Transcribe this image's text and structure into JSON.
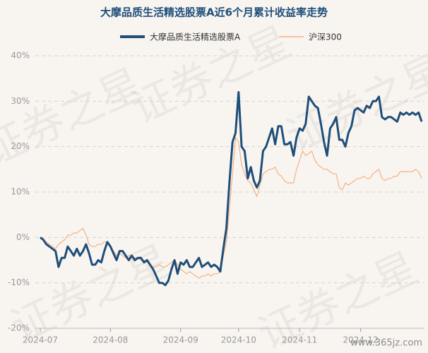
{
  "chart_data": {
    "type": "line",
    "title": "大摩品质生活精选股票A近6个月累计收益率走势",
    "watermark": "证券之星",
    "site_watermark": "www.365jz.com",
    "categories": [
      "2024-07",
      null,
      null,
      null,
      null,
      null,
      null,
      null,
      null,
      null,
      null,
      null,
      null,
      null,
      null,
      null,
      null,
      null,
      null,
      null,
      null,
      null,
      null,
      "2024-08",
      null,
      null,
      null,
      null,
      null,
      null,
      null,
      null,
      null,
      null,
      null,
      null,
      null,
      null,
      null,
      null,
      null,
      null,
      null,
      null,
      null,
      null,
      "2024-09",
      null,
      null,
      null,
      null,
      null,
      null,
      null,
      null,
      null,
      null,
      null,
      null,
      null,
      null,
      null,
      null,
      null,
      null,
      "2024-10",
      null,
      null,
      null,
      null,
      null,
      null,
      null,
      null,
      null,
      null,
      null,
      null,
      null,
      null,
      null,
      null,
      null,
      null,
      null,
      "2024-11",
      null,
      null,
      null,
      null,
      null,
      null,
      null,
      null,
      null,
      null,
      null,
      null,
      null,
      null,
      null,
      null,
      null,
      null,
      null,
      "2024-12",
      null,
      null,
      null,
      null,
      null,
      null,
      null,
      null,
      null,
      null,
      null,
      null,
      null,
      null,
      null,
      null,
      null,
      null,
      null,
      null
    ],
    "series": [
      {
        "name": "大摩品质生活精选股票A",
        "color": "#1f4e79",
        "values": [
          0,
          -0.5,
          -1.5,
          -2,
          -2.5,
          -3,
          -6.5,
          -4.5,
          -4.5,
          -2,
          -3,
          -4,
          -2.5,
          -4,
          -3,
          -1.5,
          -3.5,
          -6,
          -6,
          -5,
          -5.5,
          -3,
          -1,
          -2,
          -3.5,
          -5,
          -3,
          -3,
          -4,
          -5,
          -4,
          -5,
          -4.5,
          -4.5,
          -5.5,
          -5,
          -6,
          -7,
          -8.5,
          -10,
          -10,
          -10.5,
          -9.5,
          -7,
          -5,
          -8,
          -5.5,
          -6,
          -5,
          -6.5,
          -6.5,
          -5.5,
          -4.5,
          -6.5,
          -6,
          -5.5,
          -6.5,
          -6,
          -6.5,
          -7.5,
          -2.5,
          2,
          12,
          21,
          23,
          32,
          20,
          19,
          13,
          15.5,
          12.5,
          11,
          12.5,
          19,
          20,
          22,
          24,
          20.5,
          24.5,
          24.5,
          20.5,
          20.5,
          21,
          18,
          22,
          24,
          23.5,
          25,
          31,
          30,
          29,
          28.5,
          25,
          21,
          18,
          24,
          25,
          26.5,
          21.5,
          21.5,
          20,
          23,
          24.5,
          28,
          28.5,
          28,
          27.5,
          29,
          28.5,
          30,
          30,
          31,
          26.5,
          26,
          26.5,
          26.5,
          26,
          25.5,
          27.5,
          27,
          27.5,
          27,
          27.5,
          27,
          27.5,
          25.5
        ]
      },
      {
        "name": "沪深300",
        "color": "#f4b183",
        "values": [
          0,
          -0.5,
          -1,
          -1.5,
          -2,
          -2.5,
          -1.5,
          -1,
          -0.5,
          0.5,
          0.5,
          1,
          1,
          1.5,
          2,
          0.5,
          -1.5,
          -2,
          -2,
          -1.5,
          -1.5,
          -1,
          -1,
          -2,
          -3,
          -4,
          -3.5,
          -4,
          -4.5,
          -4,
          -4,
          -4.5,
          -4.5,
          -5,
          -5,
          -5.5,
          -6,
          -6.5,
          -6.5,
          -6,
          -6.5,
          -6.5,
          -6,
          -5.5,
          -5,
          -6,
          -7,
          -7.5,
          -8,
          -7.5,
          -8,
          -8.5,
          -9,
          -8.5,
          -8.5,
          -8,
          -8.5,
          -8,
          -8,
          -7.5,
          -4,
          -1,
          6,
          14,
          22,
          21,
          16,
          14,
          12.5,
          12,
          10.5,
          9,
          11.5,
          14,
          14.5,
          15,
          15,
          15.5,
          14,
          13.5,
          12.5,
          12,
          12,
          12,
          15,
          17,
          19,
          18,
          18.5,
          19,
          17,
          16,
          15.5,
          15,
          15,
          14.5,
          14,
          14,
          11,
          10.5,
          12,
          11.5,
          12,
          12.5,
          13,
          13,
          13.5,
          13,
          13,
          14,
          14.5,
          15,
          13,
          12.5,
          13,
          13,
          13.5,
          13.5,
          14.5,
          14.5,
          14.5,
          14.5,
          14.5,
          15,
          14.5,
          13
        ]
      }
    ],
    "ylim": [
      -20,
      40
    ],
    "yticks": [
      {
        "value": -20,
        "label": "-20%"
      },
      {
        "value": -10,
        "label": "-10%"
      },
      {
        "value": 0,
        "label": "0%"
      },
      {
        "value": 10,
        "label": "10%"
      },
      {
        "value": 20,
        "label": "20%"
      },
      {
        "value": 30,
        "label": "30%"
      },
      {
        "value": 40,
        "label": "40%"
      }
    ],
    "grid": true
  }
}
